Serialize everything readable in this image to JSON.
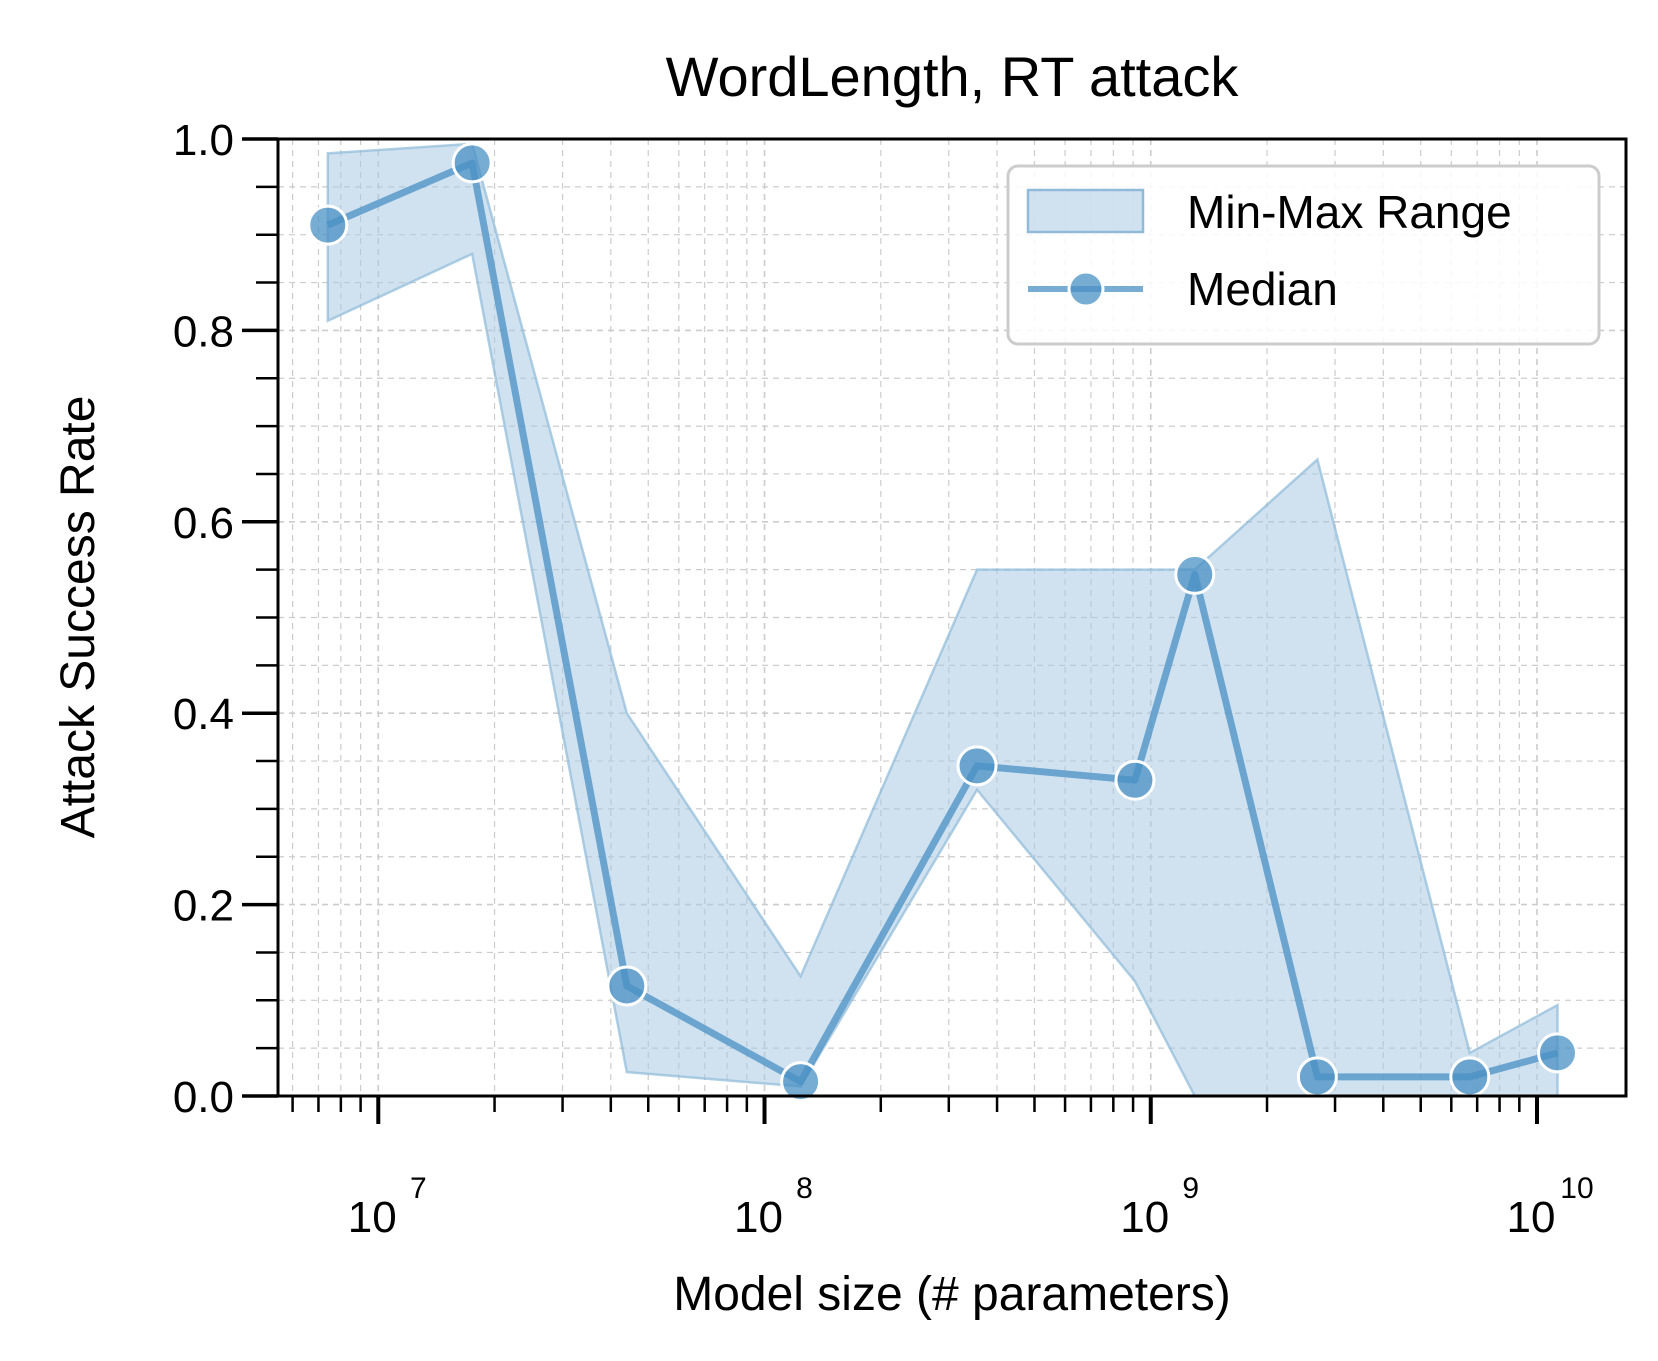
{
  "chart_data": {
    "type": "line",
    "title": "WordLength, RT attack",
    "xlabel": "Model size (# parameters)",
    "ylabel": "Attack Success Rate",
    "xscale": "log",
    "xlim": [
      5500000,
      17000000000
    ],
    "ylim": [
      0.0,
      1.0
    ],
    "grid": true,
    "legend_position": "top-right",
    "x_ticks": [
      {
        "base": "10",
        "exp": "7",
        "value": 10000000
      },
      {
        "base": "10",
        "exp": "8",
        "value": 100000000
      },
      {
        "base": "10",
        "exp": "9",
        "value": 1000000000
      },
      {
        "base": "10",
        "exp": "10",
        "value": 10000000000
      }
    ],
    "y_ticks": [
      "0.0",
      "0.2",
      "0.4",
      "0.6",
      "0.8",
      "1.0"
    ],
    "y_tick_values": [
      0.0,
      0.2,
      0.4,
      0.6,
      0.8,
      1.0
    ],
    "x": [
      7400000,
      17500000,
      44000000,
      124000000,
      355000000,
      910000000,
      1300000000,
      2700000000,
      6700000000,
      11300000000
    ],
    "series": [
      {
        "name": "Median",
        "values": [
          0.91,
          0.975,
          0.115,
          0.015,
          0.345,
          0.33,
          0.545,
          0.02,
          0.02,
          0.045
        ]
      },
      {
        "name": "Min-Max Range",
        "lower": [
          0.81,
          0.88,
          0.025,
          0.01,
          0.32,
          0.12,
          0.0,
          0.0,
          0.0,
          0.0
        ],
        "upper": [
          0.985,
          0.995,
          0.4,
          0.125,
          0.55,
          0.55,
          0.55,
          0.665,
          0.045,
          0.095
        ]
      }
    ],
    "colors": {
      "median": "#4a90c4",
      "band": "#a9cbe3"
    }
  }
}
